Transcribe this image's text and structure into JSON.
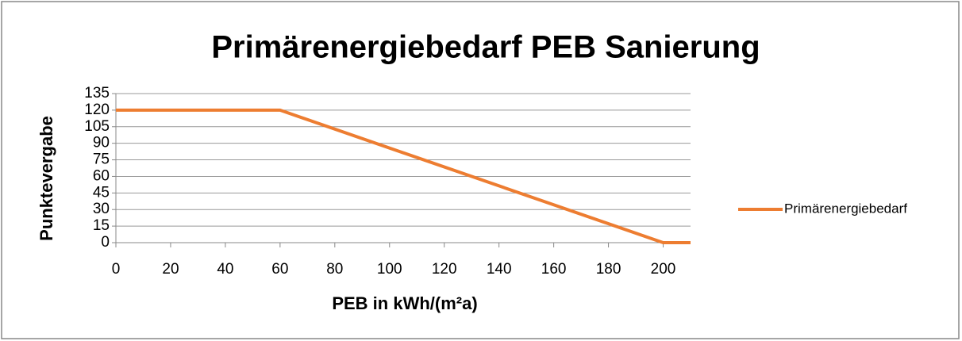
{
  "chart_data": {
    "type": "line",
    "title": "Primärenergiebedarf PEB Sanierung",
    "x_label": "PEB in kWh/(m²a)",
    "y_label": "Punktevergabe",
    "x": [
      0,
      60,
      200,
      210
    ],
    "series": [
      {
        "name": "Primärenergiebedarf",
        "color": "#ed7d31",
        "values": [
          120,
          120,
          0,
          0
        ]
      }
    ],
    "xlim": [
      0,
      210
    ],
    "xticks": [
      0,
      20,
      40,
      60,
      80,
      100,
      120,
      140,
      160,
      180,
      200
    ],
    "ylim": [
      0,
      135
    ],
    "yticks": [
      0,
      15,
      30,
      45,
      60,
      75,
      90,
      105,
      120,
      135
    ],
    "grid": true,
    "legend": "right"
  }
}
